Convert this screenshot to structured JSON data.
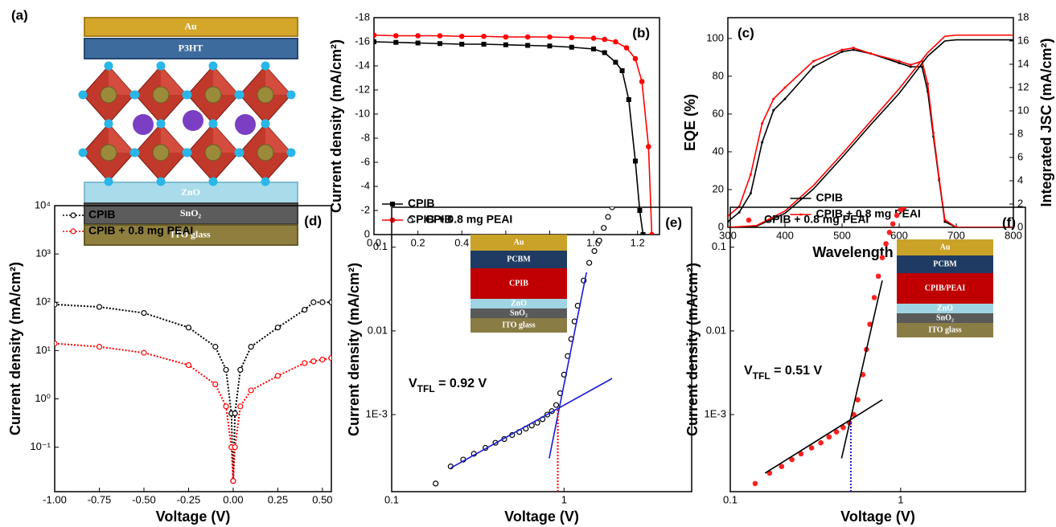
{
  "schematic": {
    "panel_label": "(a)",
    "layers": [
      "Au",
      "P3HT",
      "ZnO",
      "SnO₂",
      "ITO glass"
    ]
  },
  "chart_data": [
    {
      "type": "line",
      "panel_label": "(b)",
      "xlabel": "Voltage (V)",
      "ylabel": "Current density (mA/cm²)",
      "xlim": [
        0,
        1.3
      ],
      "xticks": [
        {
          "value": 0,
          "label": "0.0"
        },
        {
          "value": 0.2,
          "label": "0.2"
        },
        {
          "value": 0.4,
          "label": "0.4"
        },
        {
          "value": 0.6,
          "label": "0.6"
        },
        {
          "value": 0.8,
          "label": "0.8"
        },
        {
          "value": 1,
          "label": "1.0"
        },
        {
          "value": 1.2,
          "label": "1.2"
        }
      ],
      "ylim": [
        0,
        -18
      ],
      "yticks": [
        0,
        -2,
        -4,
        -6,
        -8,
        -10,
        -12,
        -14,
        -16,
        -18
      ],
      "legend": "lower left",
      "series": [
        {
          "name": "CPIB",
          "color": "#000000",
          "marker": "square",
          "line": "solid",
          "x": [
            0,
            0.1,
            0.2,
            0.3,
            0.4,
            0.5,
            0.6,
            0.7,
            0.8,
            0.9,
            1.0,
            1.05,
            1.1,
            1.13,
            1.16,
            1.19,
            1.21,
            1.225
          ],
          "values": [
            -16.0,
            -15.95,
            -15.9,
            -15.85,
            -15.8,
            -15.8,
            -15.75,
            -15.7,
            -15.65,
            -15.55,
            -15.4,
            -15.1,
            -14.3,
            -13.6,
            -11.2,
            -6.1,
            -2.0,
            0
          ]
        },
        {
          "name": "CPIB + 0.8 mg PEAI",
          "color": "#ff0000",
          "marker": "circle",
          "line": "solid",
          "x": [
            0,
            0.1,
            0.2,
            0.3,
            0.4,
            0.5,
            0.6,
            0.7,
            0.8,
            0.9,
            1.0,
            1.05,
            1.1,
            1.15,
            1.19,
            1.22,
            1.25,
            1.265
          ],
          "values": [
            -16.55,
            -16.5,
            -16.5,
            -16.5,
            -16.45,
            -16.45,
            -16.4,
            -16.4,
            -16.4,
            -16.35,
            -16.3,
            -16.2,
            -16.0,
            -15.5,
            -14.6,
            -12.7,
            -7.3,
            0
          ]
        }
      ]
    },
    {
      "type": "line",
      "panel_label": "(c)",
      "xlabel": "Wavelength (nm)",
      "ylabel": "EQE (%)",
      "y2label": "Integrated JSC (mA/cm²)",
      "xlim": [
        300,
        800
      ],
      "xticks": [
        300,
        400,
        500,
        600,
        700,
        800
      ],
      "ylim": [
        0,
        111
      ],
      "yticks": [
        0,
        20,
        40,
        60,
        80,
        100
      ],
      "y2lim": [
        0,
        18
      ],
      "y2ticks": [
        0,
        2,
        4,
        6,
        8,
        10,
        12,
        14,
        16,
        18
      ],
      "legend": "lower center",
      "series": [
        {
          "name": "CPIB",
          "color": "#000000",
          "marker": "dot",
          "line": "solid",
          "x": [
            300,
            320,
            340,
            360,
            380,
            400,
            450,
            500,
            520,
            550,
            600,
            620,
            640,
            650,
            660,
            670,
            680,
            700,
            800
          ],
          "values": [
            3,
            8,
            18,
            45,
            62,
            68,
            85,
            93,
            94,
            92,
            87,
            85,
            85,
            72,
            48,
            25,
            3,
            0,
            0
          ]
        },
        {
          "name": "CPIB + 0.8 mg PEAI",
          "color": "#ff0000",
          "marker": "dot",
          "line": "solid",
          "x": [
            300,
            320,
            340,
            360,
            380,
            400,
            450,
            500,
            520,
            550,
            600,
            620,
            640,
            650,
            660,
            670,
            680,
            700,
            800
          ],
          "values": [
            6,
            11,
            28,
            55,
            68,
            74,
            88,
            94,
            95,
            92,
            88,
            86,
            88,
            76,
            50,
            26,
            4,
            0,
            0
          ]
        },
        {
          "color": "#000000",
          "marker": "none",
          "line": "solid",
          "axis": "y2",
          "x": [
            300,
            350,
            400,
            450,
            500,
            550,
            600,
            650,
            680,
            700,
            800
          ],
          "values": [
            0,
            0.1,
            1.2,
            3.3,
            6,
            8.8,
            11.5,
            14.7,
            16,
            16.1,
            16.1
          ]
        },
        {
          "color": "#ff0000",
          "marker": "none",
          "line": "solid",
          "axis": "y2",
          "x": [
            300,
            350,
            400,
            450,
            500,
            550,
            600,
            650,
            680,
            700,
            800
          ],
          "values": [
            0,
            0.15,
            1.4,
            3.6,
            6.3,
            9.1,
            11.9,
            15,
            16.4,
            16.5,
            16.5
          ]
        }
      ]
    },
    {
      "type": "line",
      "panel_label": "(d)",
      "xlabel": "Voltage (V)",
      "ylabel": "Current density (mA/cm²)",
      "ylog": true,
      "xlim": [
        -1,
        0.55
      ],
      "xticks": [
        {
          "value": -1,
          "label": "-1.00"
        },
        {
          "value": -0.75,
          "label": "-0.75"
        },
        {
          "value": -0.5,
          "label": "-0.50"
        },
        {
          "value": -0.25,
          "label": "-0.25"
        },
        {
          "value": 0,
          "label": "0.00"
        },
        {
          "value": 0.25,
          "label": "0.25"
        },
        {
          "value": 0.5,
          "label": "0.50"
        }
      ],
      "ylim": [
        0.012,
        10000
      ],
      "yticks": [
        {
          "value": 0.1,
          "label": "10⁻¹"
        },
        {
          "value": 1,
          "label": "10⁰"
        },
        {
          "value": 10,
          "label": "10¹"
        },
        {
          "value": 100,
          "label": "10²"
        },
        {
          "value": 1000,
          "label": "10³"
        },
        {
          "value": 10000,
          "label": "10⁴"
        }
      ],
      "legend": "upper left",
      "series": [
        {
          "name": "CPIB",
          "color": "#000000",
          "marker": "hollow-circle",
          "line": "dotted",
          "x": [
            -1,
            -0.75,
            -0.5,
            -0.25,
            -0.1,
            -0.04,
            -0.01,
            0,
            0.01,
            0.04,
            0.1,
            0.25,
            0.4,
            0.45,
            0.5,
            0.55
          ],
          "values": [
            90,
            80,
            60,
            30,
            12,
            4,
            0.5,
            0.02,
            0.5,
            4,
            12,
            30,
            70,
            100,
            100,
            100
          ]
        },
        {
          "name": "CPIB + 0.8 mg PEAI",
          "color": "#ff0000",
          "marker": "hollow-circle",
          "line": "dotted",
          "x": [
            -1,
            -0.75,
            -0.5,
            -0.25,
            -0.1,
            -0.04,
            -0.01,
            0,
            0.01,
            0.04,
            0.1,
            0.25,
            0.4,
            0.45,
            0.5,
            0.55
          ],
          "values": [
            14,
            12,
            9,
            5,
            2,
            0.7,
            0.1,
            0.02,
            0.1,
            0.7,
            1.5,
            3,
            5.5,
            6,
            6.5,
            7
          ]
        }
      ]
    },
    {
      "type": "scatter",
      "panel_label": "(e)",
      "xlabel": "Voltage (V)",
      "ylabel": "Current density (mA/cm²)",
      "xlog": true,
      "ylog": true,
      "xlim": [
        0.1,
        5.5
      ],
      "xticks": [
        0.1,
        1
      ],
      "ylim": [
        0.00012,
        0.3
      ],
      "yticks": [
        {
          "value": 0.001,
          "label": "1E-3"
        },
        0.01,
        0.1
      ],
      "legend": "upper left",
      "annotation": [
        "V",
        "TFL",
        " = 0.92 V"
      ],
      "inset": [
        {
          "label": "Au",
          "color": "#c9a227"
        },
        {
          "label": "PCBM",
          "color": "#1f3b63"
        },
        {
          "label": "CPIB",
          "color": "#c00000"
        },
        {
          "label": "ZnO",
          "color": "#9fd4e3"
        },
        {
          "label": "SnO₂",
          "color": "#5a5a5a"
        },
        {
          "label": "ITO glass",
          "color": "#8a7c45"
        }
      ],
      "series": [
        {
          "name": "CPIB",
          "color": "#000000",
          "marker": "hollow-circle",
          "line": "none",
          "x": [
            0.18,
            0.22,
            0.26,
            0.3,
            0.35,
            0.4,
            0.45,
            0.5,
            0.55,
            0.6,
            0.65,
            0.7,
            0.75,
            0.8,
            0.85,
            0.9,
            0.95,
            1.0,
            1.05,
            1.1,
            1.15,
            1.2,
            1.3,
            1.4,
            1.5,
            1.6,
            1.7,
            1.8,
            1.9
          ],
          "values": [
            0.00015,
            0.00024,
            0.00029,
            0.00034,
            0.0004,
            0.00046,
            0.00051,
            0.00057,
            0.00062,
            0.00068,
            0.00074,
            0.0008,
            0.00088,
            0.001,
            0.0011,
            0.0013,
            0.0018,
            0.003,
            0.005,
            0.008,
            0.013,
            0.02,
            0.04,
            0.065,
            0.09,
            0.12,
            0.17,
            0.23,
            0.3
          ]
        },
        {
          "color": "#1a1ad6",
          "marker": "none",
          "line": "solid",
          "x": [
            0.22,
            1.9
          ],
          "values": [
            0.00023,
            0.0027
          ]
        },
        {
          "color": "#1a1ad6",
          "marker": "none",
          "line": "solid",
          "x": [
            0.82,
            1.35
          ],
          "values": [
            0.0003,
            0.05
          ]
        },
        {
          "color": "#ff0000",
          "marker": "none",
          "line": "dotted",
          "x": [
            0.92,
            0.92
          ],
          "values": [
            0.00012,
            0.0012
          ]
        }
      ]
    },
    {
      "type": "scatter",
      "panel_label": "(f)",
      "xlabel": "Voltage (V)",
      "ylabel": "Current density (mA/cm²)",
      "xlog": true,
      "ylog": true,
      "xlim": [
        0.1,
        5.4
      ],
      "xticks": [
        0.1,
        1
      ],
      "ylim": [
        0.00012,
        0.3
      ],
      "yticks": [
        {
          "value": 0.001,
          "label": "1E-3"
        },
        0.01,
        0.1
      ],
      "legend": "upper left",
      "annotation": [
        "V",
        "TFL",
        " = 0.51 V"
      ],
      "inset": [
        {
          "label": "Au",
          "color": "#c9a227"
        },
        {
          "label": "PCBM",
          "color": "#1f3b63"
        },
        {
          "label": "CPIB/PEAI",
          "color": "#c00000"
        },
        {
          "label": "ZnO",
          "color": "#9fd4e3"
        },
        {
          "label": "SnO₂",
          "color": "#5a5a5a"
        },
        {
          "label": "ITO glass",
          "color": "#8a7c45"
        }
      ],
      "series": [
        {
          "name": "CPIB + 0.8 mg PEAI",
          "color": "#ff2020",
          "marker": "circle",
          "line": "none",
          "x": [
            0.14,
            0.17,
            0.2,
            0.23,
            0.26,
            0.3,
            0.34,
            0.38,
            0.42,
            0.46,
            0.5,
            0.53,
            0.56,
            0.6,
            0.63,
            0.66,
            0.7,
            0.74,
            0.78,
            0.82,
            0.86,
            0.9,
            0.95,
            1.0,
            1.05,
            1.1
          ],
          "values": [
            0.00015,
            0.0002,
            0.00024,
            0.00029,
            0.00034,
            0.0004,
            0.00046,
            0.00054,
            0.00062,
            0.0007,
            0.0008,
            0.001,
            0.0015,
            0.003,
            0.006,
            0.012,
            0.025,
            0.045,
            0.075,
            0.11,
            0.15,
            0.19,
            0.24,
            0.28,
            0.3,
            0.32
          ]
        },
        {
          "color": "#000000",
          "marker": "none",
          "line": "solid",
          "x": [
            0.16,
            0.78
          ],
          "values": [
            0.0002,
            0.0015
          ]
        },
        {
          "color": "#000000",
          "marker": "none",
          "line": "solid",
          "x": [
            0.45,
            0.78
          ],
          "values": [
            0.0003,
            0.04
          ]
        },
        {
          "color": "#1a1ad6",
          "marker": "none",
          "line": "dotted",
          "x": [
            0.51,
            0.51
          ],
          "values": [
            0.00012,
            0.0008
          ]
        }
      ]
    }
  ]
}
